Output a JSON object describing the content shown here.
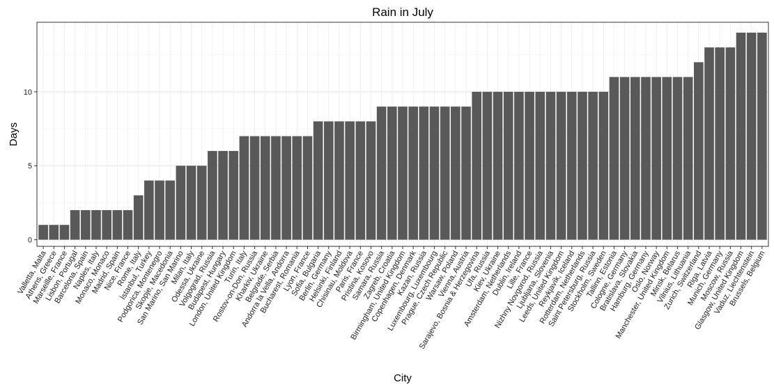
{
  "chart_data": {
    "type": "bar",
    "title": "Rain in July",
    "xlabel": "City",
    "ylabel": "Days",
    "ylim": [
      -0.45,
      14.7
    ],
    "yticks": [
      0,
      5,
      10
    ],
    "grid": true,
    "bar_color": "#595959",
    "categories": [
      "Valletta, Malta",
      "Athens, Greece",
      "Marseille, France",
      "Lisbon, Portugal",
      "Barcelona, Spain",
      "Naples, Italy",
      "Monaco, Monaco",
      "Madrid, Spain",
      "Nice, France",
      "Rome, Italy",
      "İstanbul, Turkey",
      "Podgorica, Montenegro",
      "Skopje, Macedonia",
      "San Marino, San Marino",
      "Milan, Italy",
      "Odessa, Ukraine",
      "Volgograd, Russia",
      "Budapest, Hungary",
      "London, United Kingdom",
      "Turin, Italy",
      "Rostov-on-Don, Russia",
      "Kharkiv, Ukraine",
      "Belgrade, Serbia",
      "Andorra la Vella, Andorra",
      "Bucharest, Romania",
      "Lyon, France",
      "Sofia, Bulgaria",
      "Berlin, Germany",
      "Helsinki, Finland",
      "Chisinau, Moldova",
      "Paris, France",
      "Pristina, Kosovo",
      "Samara, Russia",
      "Zagreb, Croatia",
      "Birmingham, United Kingdom",
      "Copenhagen, Denmark",
      "Kazan, Russia",
      "Luxembourg, Luxembourg",
      "Prague, Czech Republic",
      "Warsaw, Poland",
      "Vienna, Austria",
      "Sarajevo, Bosnia & Herzegovina",
      "Ufa, Russia",
      "Kiev, Ukraine",
      "Amsterdam, Netherlands",
      "Dublin, Ireland",
      "Lille, France",
      "Nizhny Novgorod, Russia",
      "Ljubljana, Slovenia",
      "Leeds, United Kingdom",
      "Reykjavík, Iceland",
      "Rotterdam, Netherlands",
      "Saint Petersburg, Russia",
      "Stockholm, Sweden",
      "Tallinn, Estonia",
      "Cologne, Germany",
      "Bratislava, Slovakia",
      "Hamburg, Germany",
      "Oslo, Norway",
      "Manchester, United Kingdom",
      "Minsk, Belarus",
      "Vilnius, Lithuania",
      "Zurich, Switzerland",
      "Riga, Latvia",
      "Munich, Germany",
      "Moscow, Russia",
      "Glasgow, United Kingdom",
      "Vaduz, Liechtenstein",
      "Brussels, Belgium"
    ],
    "values": [
      1,
      1,
      1,
      2,
      2,
      2,
      2,
      2,
      2,
      3,
      4,
      4,
      4,
      5,
      5,
      5,
      6,
      6,
      6,
      7,
      7,
      7,
      7,
      7,
      7,
      7,
      8,
      8,
      8,
      8,
      8,
      8,
      9,
      9,
      9,
      9,
      9,
      9,
      9,
      9,
      9,
      10,
      10,
      10,
      10,
      10,
      10,
      10,
      10,
      10,
      10,
      10,
      10,
      10,
      11,
      11,
      11,
      11,
      11,
      11,
      11,
      11,
      12,
      13,
      13,
      13,
      14,
      14,
      14
    ]
  }
}
